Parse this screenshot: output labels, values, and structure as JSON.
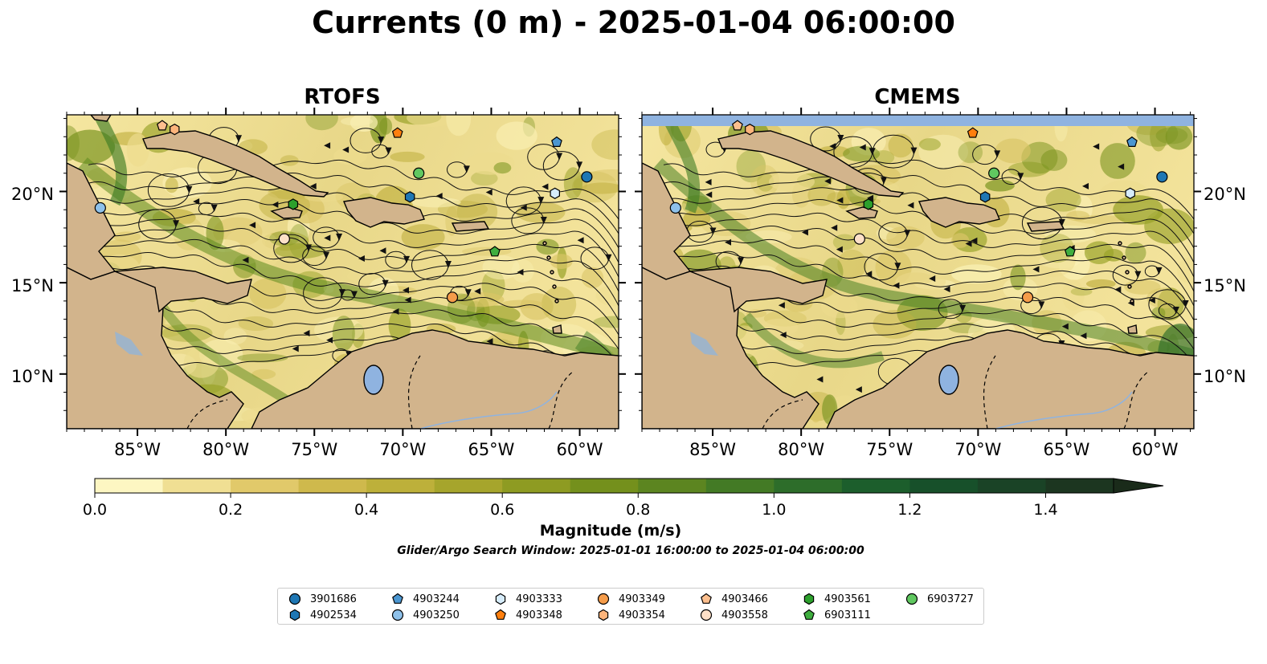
{
  "title": "Currents (0 m) - 2025-01-04 06:00:00",
  "panels": [
    {
      "title": "RTOFS"
    },
    {
      "title": "CMEMS"
    }
  ],
  "axes": {
    "lon_ticks": [
      "85°W",
      "80°W",
      "75°W",
      "70°W",
      "65°W",
      "60°W"
    ],
    "lat_ticks": [
      "20°N",
      "15°N",
      "10°N"
    ]
  },
  "colorbar": {
    "label": "Magnitude (m/s)",
    "ticks": [
      "0.0",
      "0.2",
      "0.4",
      "0.6",
      "0.8",
      "1.0",
      "1.2",
      "1.4"
    ],
    "range": [
      0,
      1.5
    ],
    "extend": "max",
    "colors": [
      "#fdf6c2",
      "#f0df93",
      "#e1c96a",
      "#cfb94c",
      "#bdb03a",
      "#a6a52c",
      "#8e9b22",
      "#74901c",
      "#5c8520",
      "#437a25",
      "#2d6d2a",
      "#1c5e2c",
      "#17502a",
      "#1a4326",
      "#1c3620",
      "#1a2b1a"
    ]
  },
  "search_window": "Glider/Argo Search Window: 2025-01-01 16:00:00 to 2025-01-04 06:00:00",
  "colors": {
    "land": "#d2b48c",
    "water_lake": "#8fb3e0",
    "ocean_low": "#f7eaa6",
    "ocean_high": "#3f7d24"
  },
  "floats": [
    {
      "id": "3901686",
      "marker": "circle",
      "color": "#1f77b4"
    },
    {
      "id": "4902534",
      "marker": "hexagon",
      "color": "#1f77b4"
    },
    {
      "id": "4903244",
      "marker": "pentagon",
      "color": "#4b96d1"
    },
    {
      "id": "4903250",
      "marker": "circle",
      "color": "#8ec1ea"
    },
    {
      "id": "4903333",
      "marker": "hexagon",
      "color": "#d6ecfb"
    },
    {
      "id": "4903348",
      "marker": "pentagon",
      "color": "#ff7f0e"
    },
    {
      "id": "4903349",
      "marker": "circle",
      "color": "#f59c4a"
    },
    {
      "id": "4903354",
      "marker": "hexagon",
      "color": "#fdb47b"
    },
    {
      "id": "4903466",
      "marker": "pentagon",
      "color": "#fdbf8e"
    },
    {
      "id": "4903558",
      "marker": "circle",
      "color": "#fde0c8"
    },
    {
      "id": "4903561",
      "marker": "hexagon",
      "color": "#2ca02c"
    },
    {
      "id": "6903111",
      "marker": "pentagon",
      "color": "#3fae3f"
    },
    {
      "id": "6903727",
      "marker": "circle",
      "color": "#60c860"
    }
  ]
}
